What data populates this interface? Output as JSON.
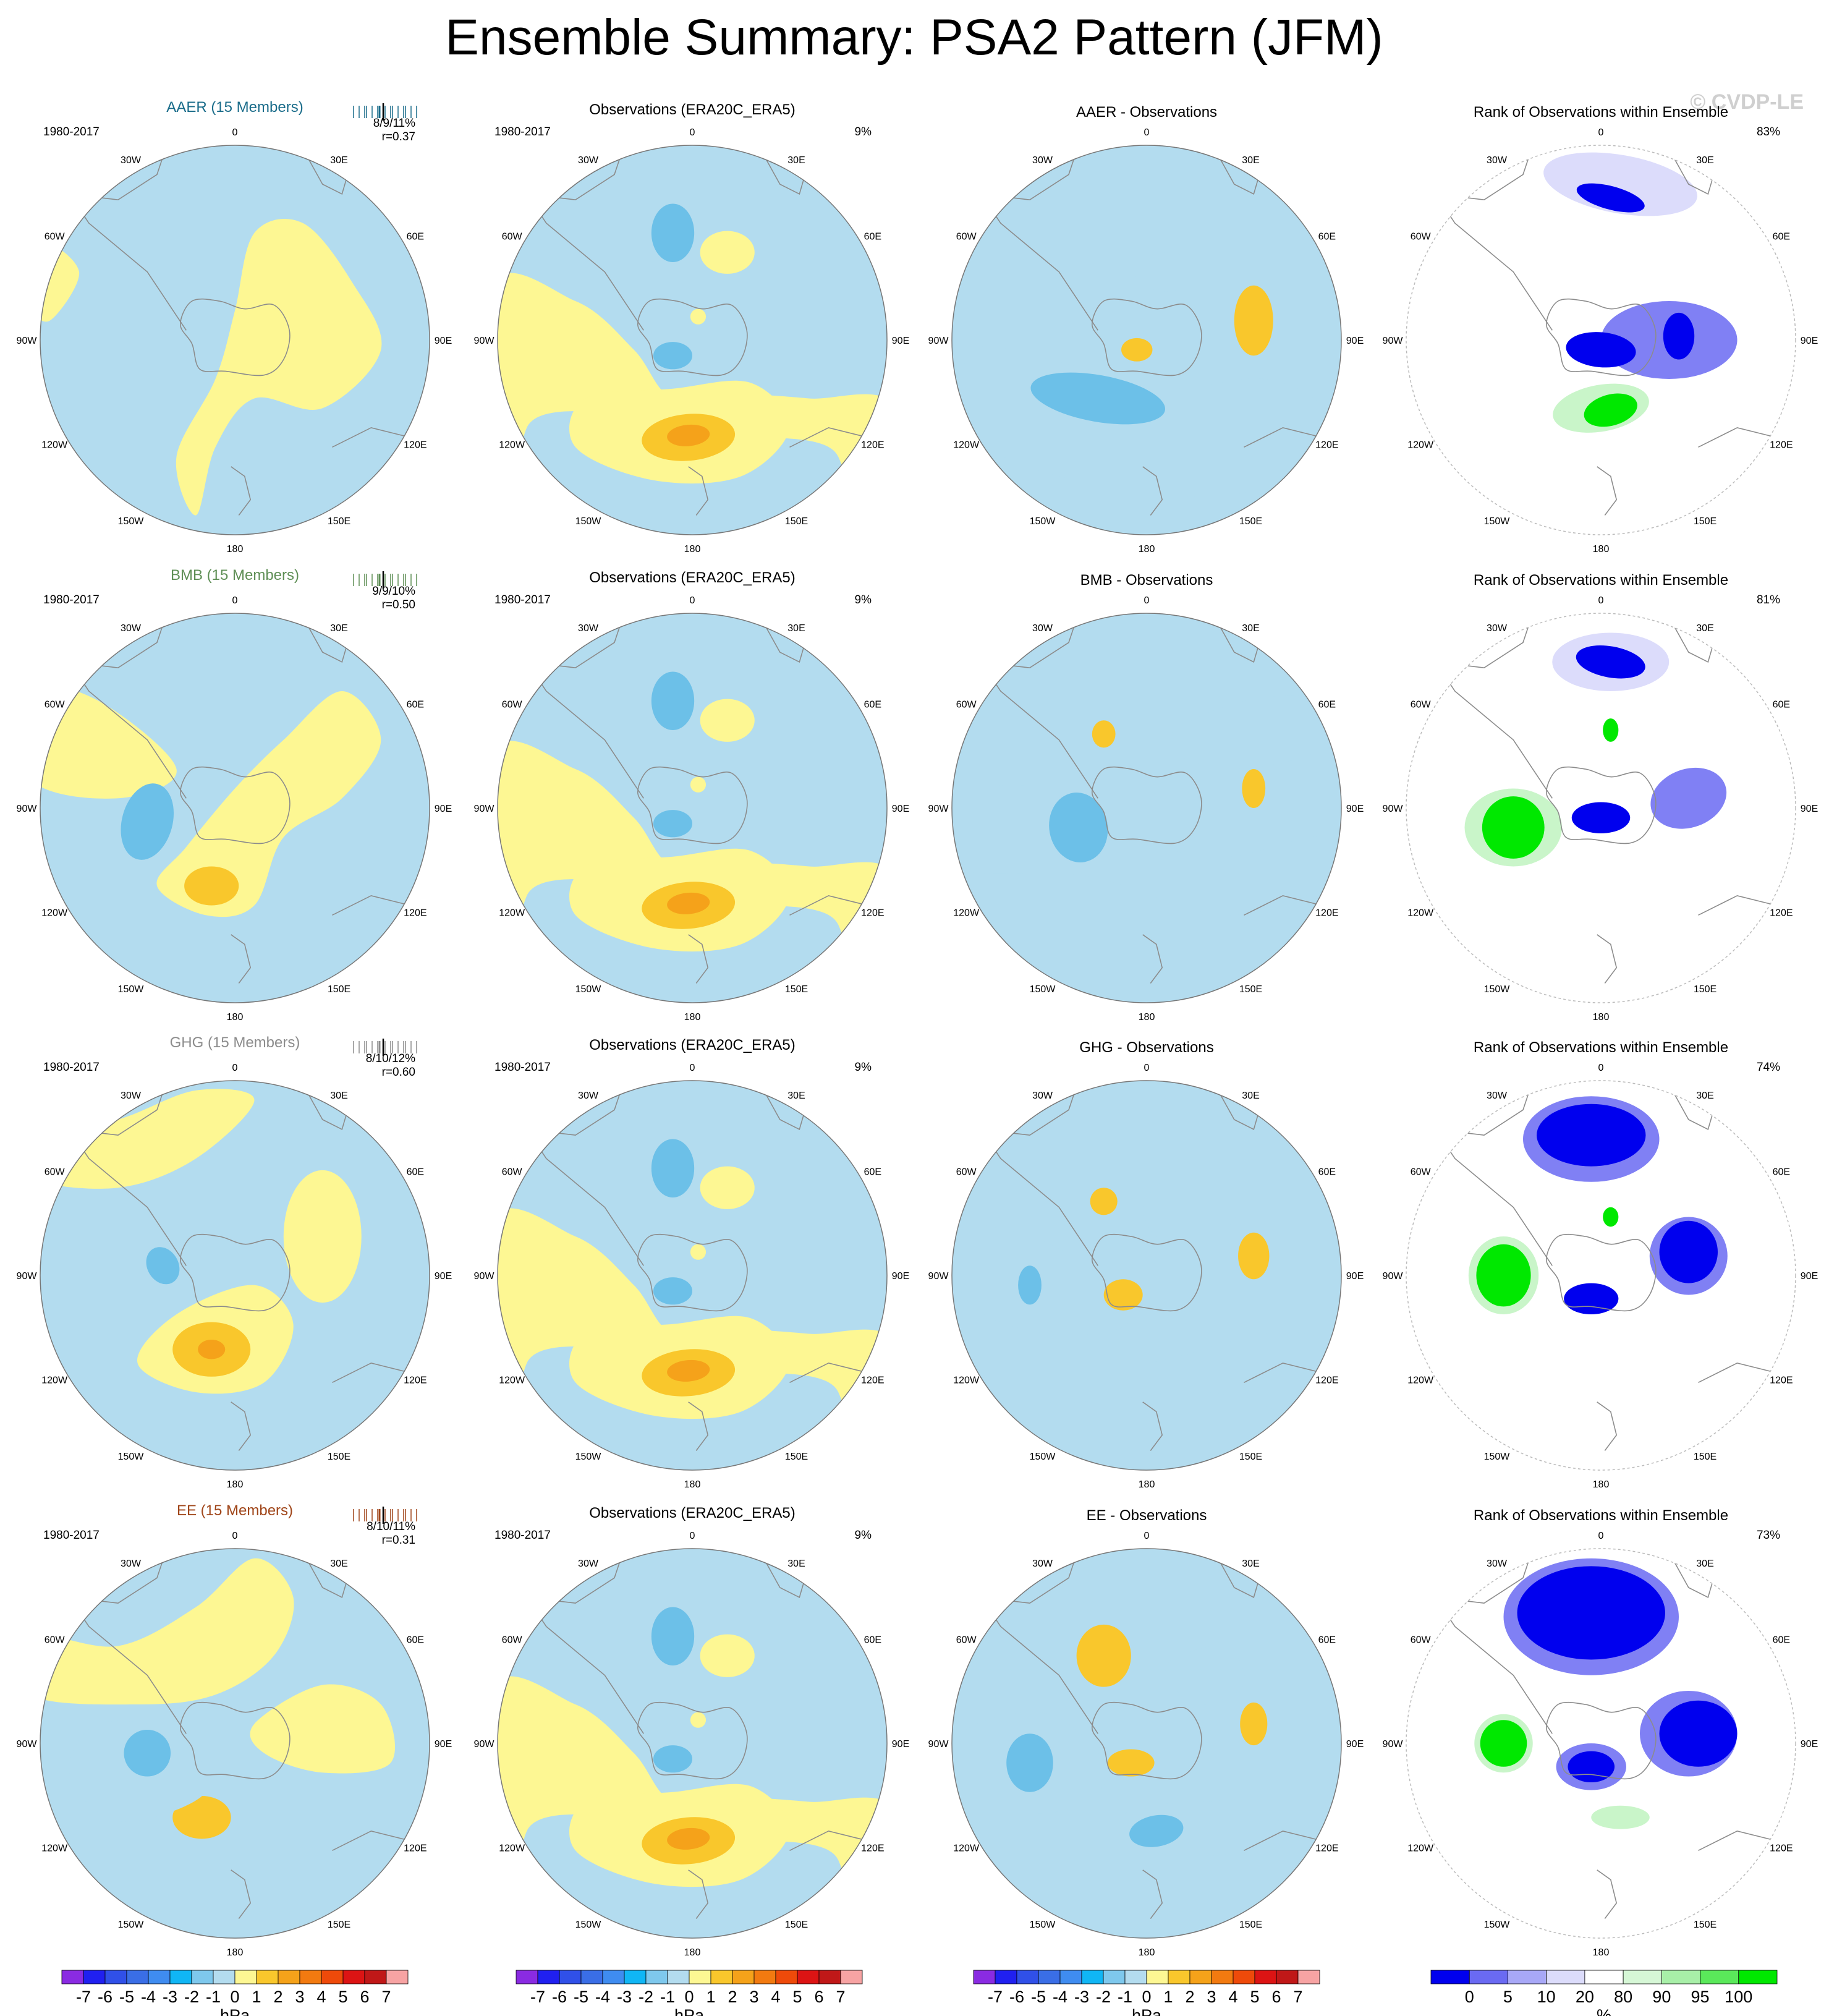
{
  "page": {
    "title": "Ensemble Summary: PSA2 Pattern (JFM)",
    "watermark": "© CVDP-LE"
  },
  "colors": {
    "ocean_blue": "#b3dcef",
    "neg_mid": "#6cc0e8",
    "pos_light": "#fdf793",
    "pos_mid": "#f9c72c",
    "pos_strong": "#f5a21a",
    "coast": "#8c8c8c",
    "rank_dark_blue": "#0000ee",
    "rank_mid_blue": "#8080f4",
    "rank_light_blue": "#dcdcfb",
    "rank_light_green": "#c9f5c9",
    "rank_green": "#00e800"
  },
  "lon_labels": [
    "0",
    "30E",
    "60E",
    "90E",
    "120E",
    "150E",
    "180",
    "150W",
    "120W",
    "90W",
    "60W",
    "30W"
  ],
  "rows": [
    {
      "name": "AAER",
      "color": "#1a6c8a",
      "model": {
        "title": "AAER (15 Members)",
        "period": "1980-2017",
        "stats": "8/9/11%",
        "corr": "r=0.37"
      },
      "obs": {
        "title": "Observations (ERA20C_ERA5)",
        "period": "1980-2017",
        "pct": "9%"
      },
      "diff": {
        "title": "AAER - Observations"
      },
      "rank": {
        "title": "Rank of Observations within Ensemble",
        "pct": "83%"
      }
    },
    {
      "name": "BMB",
      "color": "#5f8f56",
      "model": {
        "title": "BMB (15 Members)",
        "period": "1980-2017",
        "stats": "9/9/10%",
        "corr": "r=0.50"
      },
      "obs": {
        "title": "Observations (ERA20C_ERA5)",
        "period": "1980-2017",
        "pct": "9%"
      },
      "diff": {
        "title": "BMB - Observations"
      },
      "rank": {
        "title": "Rank of Observations within Ensemble",
        "pct": "81%"
      }
    },
    {
      "name": "GHG",
      "color": "#8c8c8c",
      "model": {
        "title": "GHG (15 Members)",
        "period": "1980-2017",
        "stats": "8/10/12%",
        "corr": "r=0.60"
      },
      "obs": {
        "title": "Observations (ERA20C_ERA5)",
        "period": "1980-2017",
        "pct": "9%"
      },
      "diff": {
        "title": "GHG - Observations"
      },
      "rank": {
        "title": "Rank of Observations within Ensemble",
        "pct": "74%"
      }
    },
    {
      "name": "EE",
      "color": "#a0461a",
      "model": {
        "title": "EE (15 Members)",
        "period": "1980-2017",
        "stats": "8/10/11%",
        "corr": "r=0.31"
      },
      "obs": {
        "title": "Observations (ERA20C_ERA5)",
        "period": "1980-2017",
        "pct": "9%"
      },
      "diff": {
        "title": "EE - Observations"
      },
      "rank": {
        "title": "Rank of Observations within Ensemble",
        "pct": "73%"
      }
    }
  ],
  "colorbars": {
    "hpa": {
      "unit": "hPa",
      "ticks": [
        "-7",
        "-6",
        "-5",
        "-4",
        "-3",
        "-2",
        "-1",
        "0",
        "1",
        "2",
        "3",
        "4",
        "5",
        "6",
        "7"
      ],
      "colors": [
        "#8a2be2",
        "#2020f0",
        "#3050e8",
        "#3a6ee6",
        "#3f8cf0",
        "#10b6f5",
        "#7ec8ed",
        "#b3dcef",
        "#fdf793",
        "#f9c72c",
        "#f5a21a",
        "#f27a10",
        "#ee4a0a",
        "#dc1414",
        "#c01818",
        "#f7a3a3"
      ]
    },
    "pct": {
      "unit": "%",
      "ticks": [
        "0",
        "5",
        "10",
        "20",
        "80",
        "90",
        "95",
        "100"
      ],
      "colors": [
        "#0000ee",
        "#6a6af2",
        "#a8a8f7",
        "#dcdcfb",
        "#ffffff",
        "#d6f7d6",
        "#a8efa8",
        "#5ae85a",
        "#00e800"
      ]
    }
  },
  "chart_data": [
    {
      "type": "heatmap",
      "panel": "AAER (15 Members)",
      "legend_pct": "8/9/11%",
      "r": 0.37,
      "units": "hPa",
      "scale": [
        -7,
        7
      ]
    },
    {
      "type": "heatmap",
      "panel": "Observations (ERA20C_ERA5)",
      "pct": "9%",
      "units": "hPa",
      "scale": [
        -7,
        7
      ]
    },
    {
      "type": "heatmap",
      "panel": "AAER - Observations",
      "units": "hPa",
      "scale": [
        -7,
        7
      ]
    },
    {
      "type": "heatmap",
      "panel": "Rank of Observations within Ensemble (AAER)",
      "pct": "83%",
      "units": "%",
      "scale": [
        0,
        100
      ]
    },
    {
      "type": "heatmap",
      "panel": "BMB (15 Members)",
      "legend_pct": "9/9/10%",
      "r": 0.5,
      "units": "hPa",
      "scale": [
        -7,
        7
      ]
    },
    {
      "type": "heatmap",
      "panel": "Observations (ERA20C_ERA5)",
      "pct": "9%",
      "units": "hPa",
      "scale": [
        -7,
        7
      ]
    },
    {
      "type": "heatmap",
      "panel": "BMB - Observations",
      "units": "hPa",
      "scale": [
        -7,
        7
      ]
    },
    {
      "type": "heatmap",
      "panel": "Rank of Observations within Ensemble (BMB)",
      "pct": "81%",
      "units": "%",
      "scale": [
        0,
        100
      ]
    },
    {
      "type": "heatmap",
      "panel": "GHG (15 Members)",
      "legend_pct": "8/10/12%",
      "r": 0.6,
      "units": "hPa",
      "scale": [
        -7,
        7
      ]
    },
    {
      "type": "heatmap",
      "panel": "Observations (ERA20C_ERA5)",
      "pct": "9%",
      "units": "hPa",
      "scale": [
        -7,
        7
      ]
    },
    {
      "type": "heatmap",
      "panel": "GHG - Observations",
      "units": "hPa",
      "scale": [
        -7,
        7
      ]
    },
    {
      "type": "heatmap",
      "panel": "Rank of Observations within Ensemble (GHG)",
      "pct": "74%",
      "units": "%",
      "scale": [
        0,
        100
      ]
    },
    {
      "type": "heatmap",
      "panel": "EE (15 Members)",
      "legend_pct": "8/10/11%",
      "r": 0.31,
      "units": "hPa",
      "scale": [
        -7,
        7
      ]
    },
    {
      "type": "heatmap",
      "panel": "Observations (ERA20C_ERA5)",
      "pct": "9%",
      "units": "hPa",
      "scale": [
        -7,
        7
      ]
    },
    {
      "type": "heatmap",
      "panel": "EE - Observations",
      "units": "hPa",
      "scale": [
        -7,
        7
      ]
    },
    {
      "type": "heatmap",
      "panel": "Rank of Observations within Ensemble (EE)",
      "pct": "73%",
      "units": "%",
      "scale": [
        0,
        100
      ]
    }
  ]
}
